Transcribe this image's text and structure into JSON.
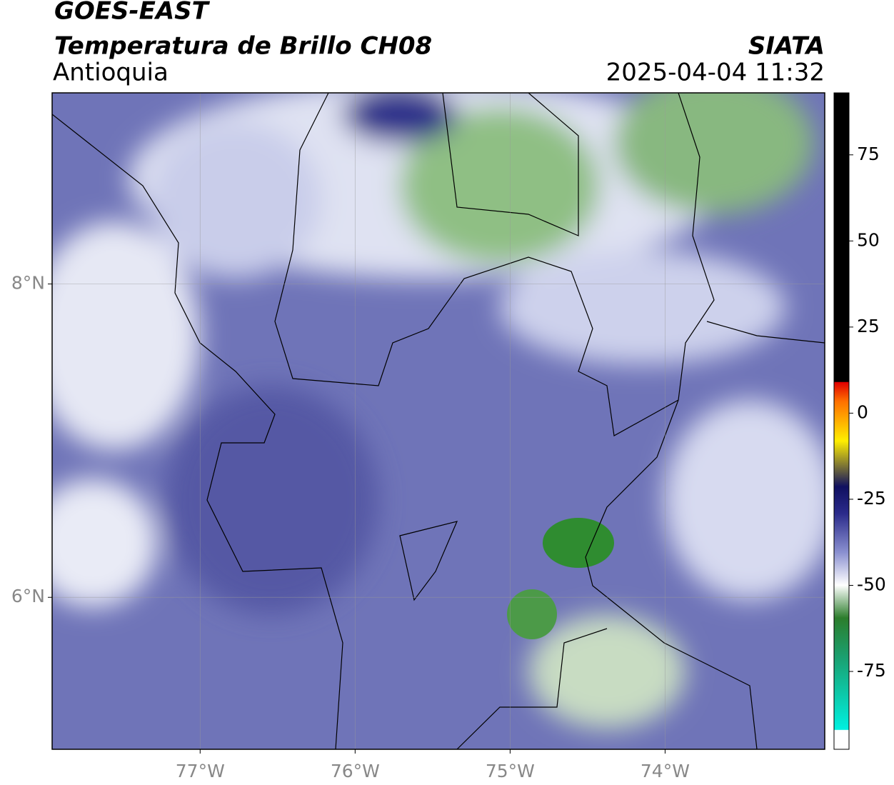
{
  "header": {
    "title": "GOES-EAST",
    "subtitle": "Temperatura de Brillo CH08",
    "region": "Antioquia",
    "source": "SIATA",
    "timestamp": "2025-04-04 11:32"
  },
  "map": {
    "lonlim": [
      -77.955,
      -72.97
    ],
    "latlim": [
      5.03,
      9.22
    ],
    "lonticks": [
      {
        "value": -77,
        "label": "77°W"
      },
      {
        "value": -76,
        "label": "76°W"
      },
      {
        "value": -75,
        "label": "75°W"
      },
      {
        "value": -74,
        "label": "74°W"
      }
    ],
    "latticks": [
      {
        "value": 8,
        "label": "8°N"
      },
      {
        "value": 6,
        "label": "6°N"
      }
    ],
    "grid": true
  },
  "colorbar": {
    "lim": [
      -97.6,
      93
    ],
    "ticks": [
      75,
      50,
      25,
      0,
      -25,
      -50,
      -75
    ]
  }
}
